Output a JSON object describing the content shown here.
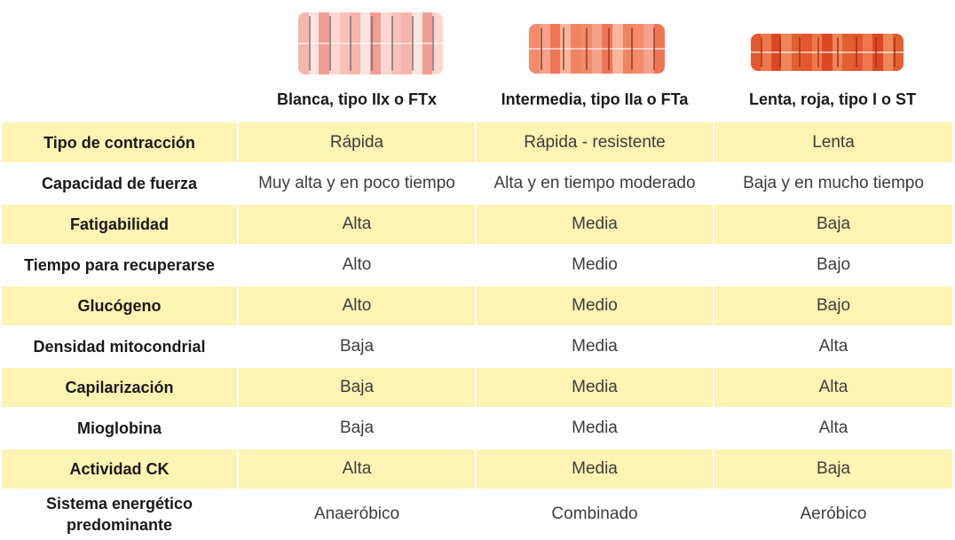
{
  "columns": [
    {
      "title": "Blanca, tipo IIx o FTx",
      "colors": [
        "#f5b5ad",
        "#fbe3df",
        "#f29d94",
        "#fcd6d1",
        "#f7c0ba"
      ]
    },
    {
      "title": "Intermedia, tipo IIa o FTa",
      "colors": [
        "#f28a6b",
        "#f6a189",
        "#ee7657",
        "#f8b49d",
        "#f08462"
      ]
    },
    {
      "title": "Lenta, roja, tipo I o ST",
      "colors": [
        "#e4572e",
        "#f0784d",
        "#d94a24",
        "#ef8558",
        "#e0612f"
      ]
    }
  ],
  "rows": [
    {
      "label": "Tipo de contracción",
      "values": [
        "Rápida",
        "Rápida - resistente",
        "Lenta"
      ]
    },
    {
      "label": "Capacidad de fuerza",
      "values": [
        "Muy alta y en poco tiempo",
        "Alta y en tiempo moderado",
        "Baja y en mucho tiempo"
      ]
    },
    {
      "label": "Fatigabilidad",
      "values": [
        "Alta",
        "Media",
        "Baja"
      ]
    },
    {
      "label": "Tiempo para recuperarse",
      "values": [
        "Alto",
        "Medio",
        "Bajo"
      ]
    },
    {
      "label": "Glucógeno",
      "values": [
        "Alto",
        "Medio",
        "Bajo"
      ]
    },
    {
      "label": "Densidad mitocondrial",
      "values": [
        "Baja",
        "Media",
        "Alta"
      ]
    },
    {
      "label": "Capilarización",
      "values": [
        "Baja",
        "Media",
        "Alta"
      ]
    },
    {
      "label": "Mioglobina",
      "values": [
        "Baja",
        "Media",
        "Alta"
      ]
    },
    {
      "label": "Actividad CK",
      "values": [
        "Alta",
        "Media",
        "Baja"
      ]
    },
    {
      "label": "Sistema energético predominante",
      "values": [
        "Anaeróbico",
        "Combinado",
        "Aeróbico"
      ]
    }
  ],
  "colors": {
    "band": "#fdf3b2",
    "zline_white": "#6e6e6e",
    "zline_mid": "#8a3a22",
    "zline_red": "#9a2f12"
  }
}
